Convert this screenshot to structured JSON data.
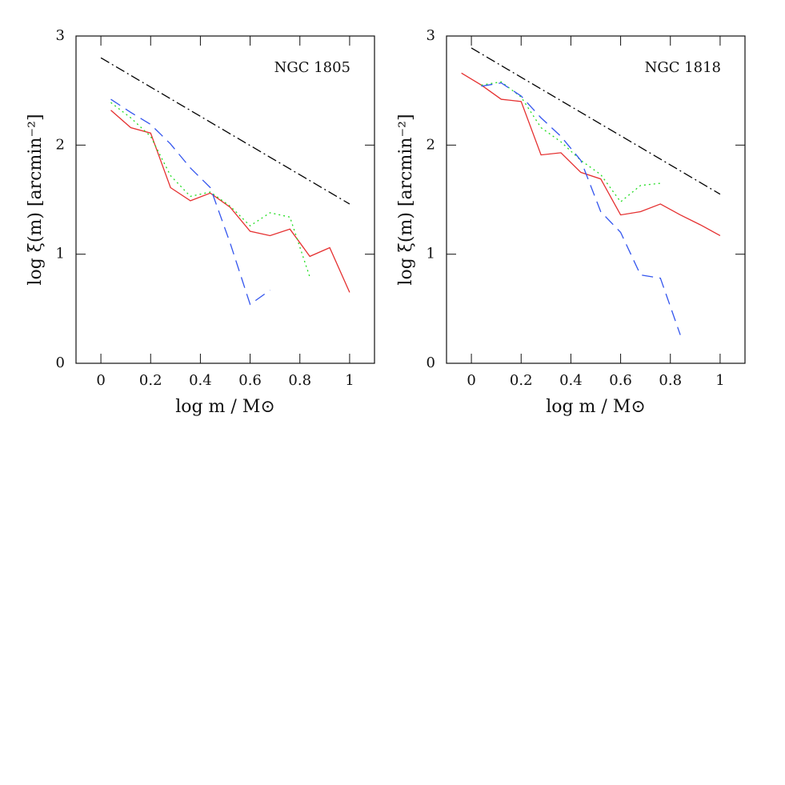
{
  "chart_data": [
    {
      "type": "line",
      "title": "NGC 1805",
      "xlabel": "log m / M⊙",
      "ylabel": "log ξ(m) [arcmin⁻²]",
      "xlim": [
        -0.1,
        1.1
      ],
      "ylim": [
        0,
        3
      ],
      "xticks": [
        0,
        0.2,
        0.4,
        0.6,
        0.8,
        1
      ],
      "yticks": [
        0,
        1,
        2,
        3
      ],
      "series": [
        {
          "color": "#000000",
          "style": "dashdot",
          "x": [
            0,
            1
          ],
          "values": [
            2.8,
            1.46
          ]
        },
        {
          "color": "#e53030",
          "style": "solid",
          "x": [
            0.04,
            0.12,
            0.2,
            0.28,
            0.36,
            0.44,
            0.52,
            0.6,
            0.68,
            0.76,
            0.84,
            0.92,
            1.0
          ],
          "values": [
            2.32,
            2.16,
            2.11,
            1.61,
            1.49,
            1.56,
            1.43,
            1.21,
            1.17,
            1.23,
            0.98,
            1.06,
            0.65
          ]
        },
        {
          "color": "#22dd22",
          "style": "dotted",
          "x": [
            0.04,
            0.12,
            0.2,
            0.28,
            0.36,
            0.44,
            0.52,
            0.6,
            0.68,
            0.76,
            0.84
          ],
          "values": [
            2.39,
            2.25,
            2.08,
            1.72,
            1.53,
            1.57,
            1.44,
            1.26,
            1.38,
            1.34,
            0.79
          ]
        },
        {
          "color": "#3355ee",
          "style": "dashed",
          "x": [
            0.04,
            0.12,
            0.2,
            0.28,
            0.36,
            0.44,
            0.52,
            0.6,
            0.68
          ],
          "values": [
            2.42,
            2.3,
            2.19,
            2.01,
            1.79,
            1.61,
            1.1,
            0.54,
            0.67
          ]
        }
      ]
    },
    {
      "type": "line",
      "title": "NGC 1818",
      "xlabel": "log m / M⊙",
      "ylabel": "log ξ(m) [arcmin⁻²]",
      "xlim": [
        -0.1,
        1.1
      ],
      "ylim": [
        0,
        3
      ],
      "xticks": [
        0,
        0.2,
        0.4,
        0.6,
        0.8,
        1
      ],
      "yticks": [
        0,
        1,
        2,
        3
      ],
      "series": [
        {
          "color": "#000000",
          "style": "dashdot",
          "x": [
            0,
            1
          ],
          "values": [
            2.89,
            1.55
          ]
        },
        {
          "color": "#e53030",
          "style": "solid",
          "x": [
            -0.04,
            0.04,
            0.12,
            0.2,
            0.28,
            0.36,
            0.44,
            0.52,
            0.6,
            0.68,
            0.76,
            0.84,
            0.92,
            1.0
          ],
          "values": [
            2.66,
            2.55,
            2.42,
            2.4,
            1.91,
            1.93,
            1.75,
            1.69,
            1.36,
            1.39,
            1.46,
            1.36,
            1.27,
            1.17
          ]
        },
        {
          "color": "#22dd22",
          "style": "dotted",
          "x": [
            0.04,
            0.12,
            0.2,
            0.28,
            0.36,
            0.44,
            0.52,
            0.6,
            0.68,
            0.76
          ],
          "values": [
            2.55,
            2.58,
            2.44,
            2.16,
            2.03,
            1.86,
            1.73,
            1.48,
            1.63,
            1.65
          ]
        },
        {
          "color": "#3355ee",
          "style": "dashed",
          "x": [
            0.04,
            0.12,
            0.2,
            0.28,
            0.36,
            0.44,
            0.52,
            0.6,
            0.68,
            0.76,
            0.84
          ],
          "values": [
            2.54,
            2.57,
            2.45,
            2.25,
            2.08,
            1.86,
            1.39,
            1.2,
            0.81,
            0.78,
            0.26
          ]
        }
      ]
    }
  ]
}
